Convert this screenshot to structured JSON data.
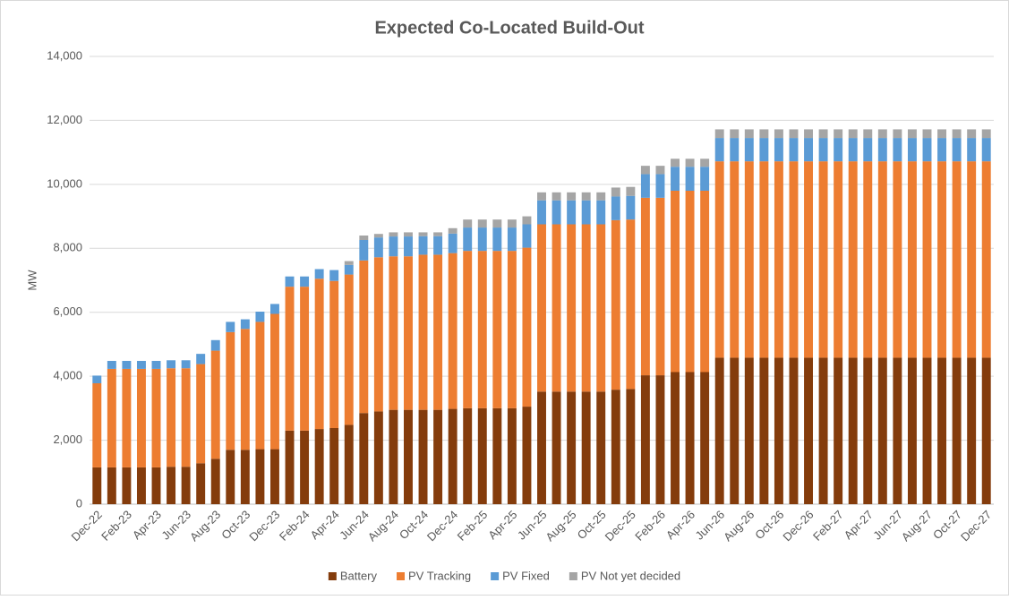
{
  "chart_data": {
    "type": "stacked-bar",
    "title": "Expected Co-Located Build-Out",
    "y_label": "MW",
    "categories": [
      "Dec-22",
      null,
      "Feb-23",
      null,
      "Apr-23",
      null,
      "Jun-23",
      null,
      "Aug-23",
      null,
      "Oct-23",
      null,
      "Dec-23",
      null,
      "Feb-24",
      null,
      "Apr-24",
      null,
      "Jun-24",
      null,
      "Aug-24",
      null,
      "Oct-24",
      null,
      "Dec-24",
      null,
      "Feb-25",
      null,
      "Apr-25",
      null,
      "Jun-25",
      null,
      "Aug-25",
      null,
      "Oct-25",
      null,
      "Dec-25",
      null,
      "Feb-26",
      null,
      "Apr-26",
      null,
      "Jun-26",
      null,
      "Aug-26",
      null,
      "Oct-26",
      null,
      "Dec-26",
      null,
      "Feb-27",
      null,
      "Apr-27",
      null,
      "Jun-27",
      null,
      "Aug-27",
      null,
      "Oct-27",
      null,
      "Dec-27"
    ],
    "series": [
      {
        "name": "Battery",
        "color": "#843c0c",
        "values": [
          1150,
          1150,
          1150,
          1150,
          1150,
          1170,
          1170,
          1280,
          1420,
          1700,
          1700,
          1720,
          1720,
          2300,
          2300,
          2350,
          2380,
          2480,
          2850,
          2900,
          2950,
          2950,
          2950,
          2950,
          2980,
          3000,
          3000,
          3000,
          3000,
          3050,
          3520,
          3520,
          3520,
          3520,
          3520,
          3580,
          3600,
          4030,
          4030,
          4130,
          4130,
          4130,
          4580,
          4580,
          4580,
          4580,
          4580,
          4580,
          4580,
          4580,
          4580,
          4580,
          4580,
          4580,
          4580,
          4580,
          4580,
          4580,
          4580,
          4580,
          4580
        ]
      },
      {
        "name": "PV Tracking",
        "color": "#ed7d31",
        "values": [
          2630,
          3080,
          3080,
          3080,
          3080,
          3080,
          3080,
          3100,
          3380,
          3680,
          3780,
          3980,
          4230,
          4500,
          4500,
          4700,
          4600,
          4700,
          4770,
          4820,
          4800,
          4800,
          4850,
          4850,
          4870,
          4920,
          4920,
          4920,
          4920,
          4970,
          5230,
          5230,
          5230,
          5230,
          5230,
          5300,
          5300,
          5550,
          5550,
          5670,
          5670,
          5670,
          6140,
          6140,
          6140,
          6140,
          6140,
          6140,
          6140,
          6140,
          6140,
          6140,
          6140,
          6140,
          6140,
          6140,
          6140,
          6140,
          6140,
          6140,
          6140
        ]
      },
      {
        "name": "PV Fixed",
        "color": "#5b9bd5",
        "values": [
          240,
          250,
          250,
          250,
          250,
          250,
          250,
          320,
          330,
          320,
          300,
          320,
          310,
          320,
          320,
          300,
          340,
          300,
          640,
          620,
          620,
          620,
          580,
          580,
          610,
          730,
          730,
          730,
          730,
          730,
          750,
          750,
          750,
          750,
          750,
          740,
          740,
          740,
          740,
          750,
          750,
          750,
          730,
          730,
          730,
          730,
          730,
          730,
          730,
          730,
          730,
          730,
          730,
          730,
          730,
          730,
          730,
          730,
          730,
          730,
          730
        ]
      },
      {
        "name": "PV Not yet decided",
        "color": "#a5a5a5",
        "values": [
          0,
          0,
          0,
          0,
          0,
          0,
          0,
          0,
          0,
          0,
          0,
          0,
          0,
          0,
          0,
          0,
          0,
          120,
          140,
          110,
          130,
          130,
          120,
          120,
          170,
          250,
          250,
          250,
          250,
          250,
          250,
          250,
          250,
          250,
          250,
          280,
          280,
          260,
          260,
          250,
          250,
          250,
          270,
          270,
          270,
          270,
          270,
          270,
          270,
          270,
          270,
          270,
          270,
          270,
          270,
          270,
          270,
          270,
          270,
          270,
          270
        ]
      }
    ],
    "ylim": [
      0,
      14000
    ],
    "yticks": [
      0,
      {
        "value": 2000,
        "label": "2,000"
      },
      {
        "value": 4000,
        "label": "4,000"
      },
      {
        "value": 6000,
        "label": "6,000"
      },
      {
        "value": 8000,
        "label": "8,000"
      },
      {
        "value": 10000,
        "label": "10,000"
      },
      {
        "value": 12000,
        "label": "12,000"
      },
      {
        "value": 14000,
        "label": "14,000"
      }
    ],
    "grid": true,
    "legend": "bottom"
  }
}
